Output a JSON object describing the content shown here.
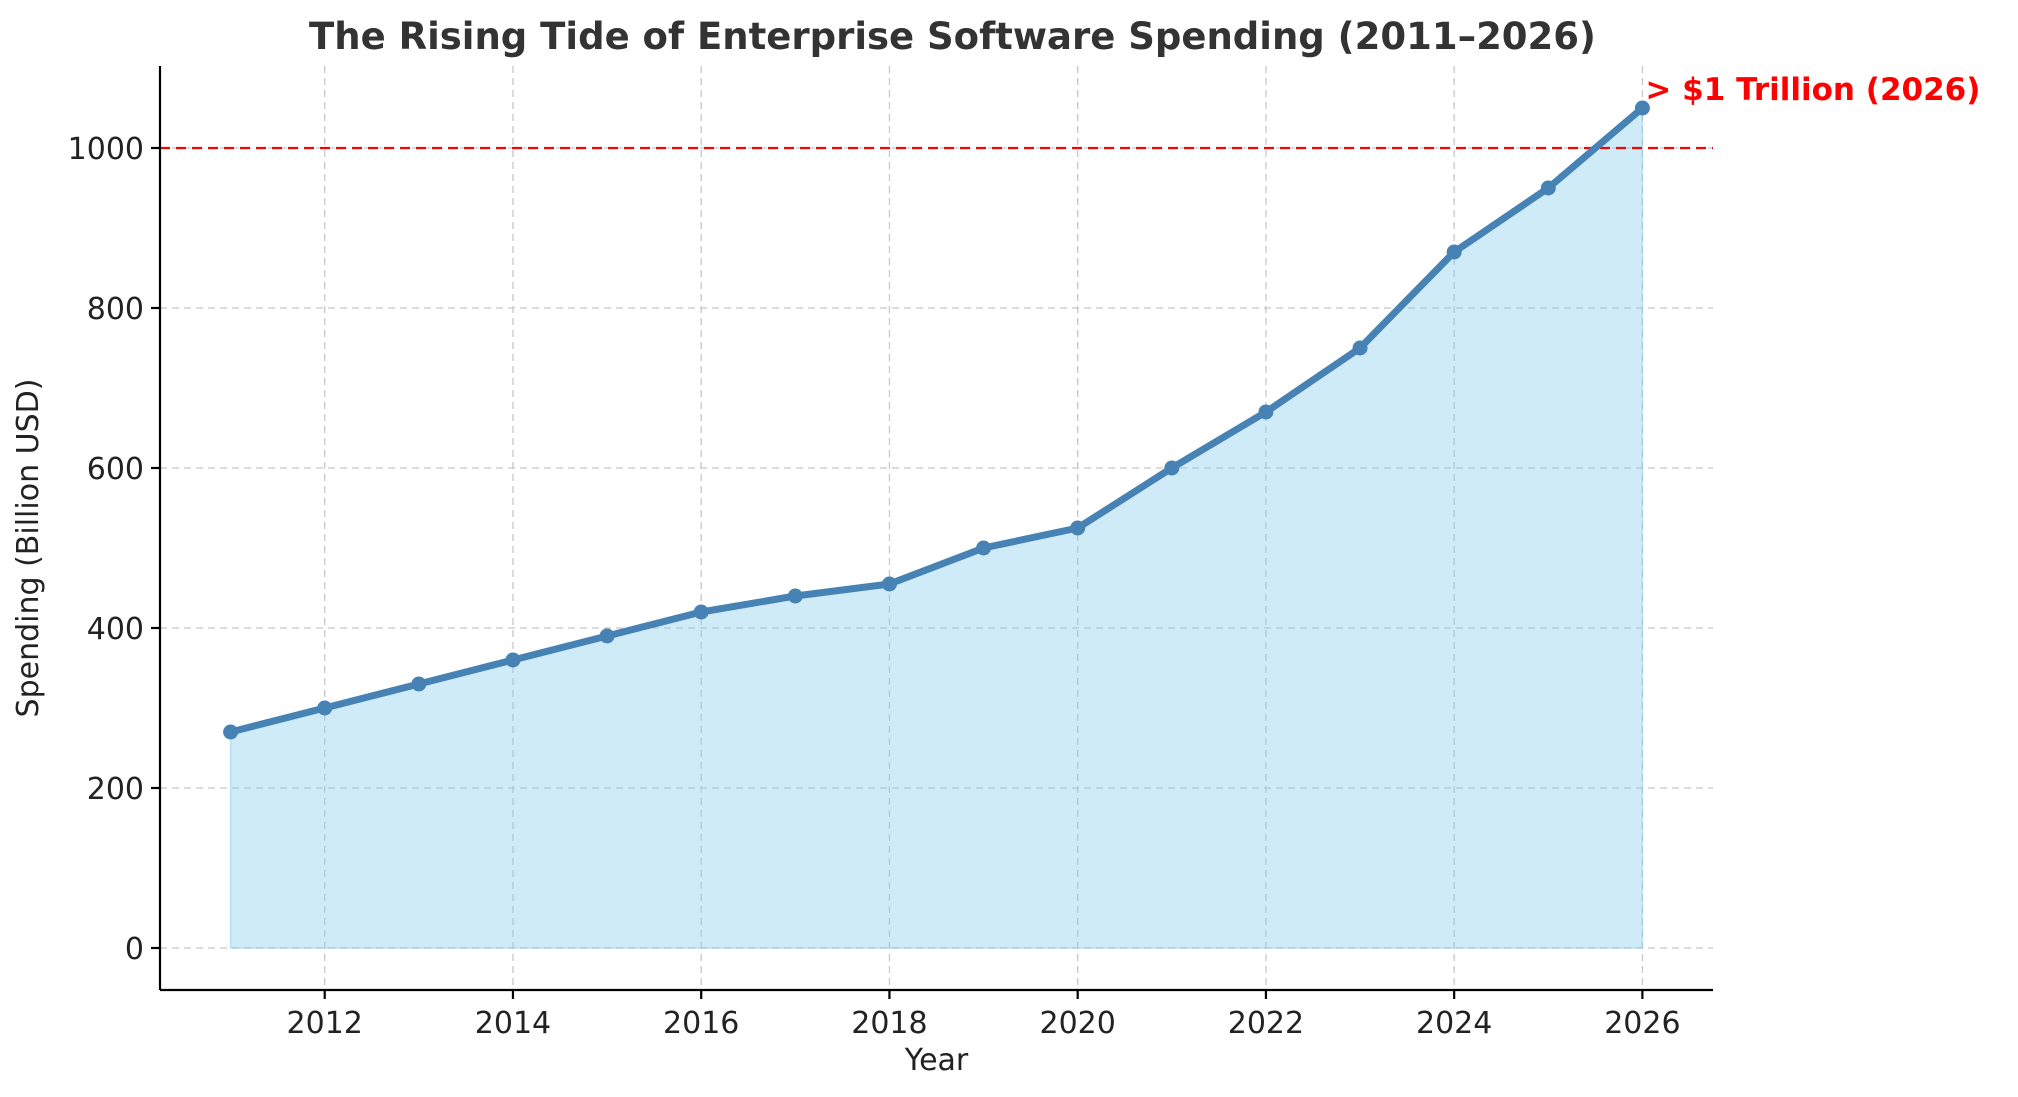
{
  "chart_data": {
    "type": "area",
    "title": "The Rising Tide of Enterprise Software Spending (2011–2026)",
    "xlabel": "Year",
    "ylabel": "Spending (Billion USD)",
    "x": [
      2011,
      2012,
      2013,
      2014,
      2015,
      2016,
      2017,
      2018,
      2019,
      2020,
      2021,
      2022,
      2023,
      2024,
      2025,
      2026
    ],
    "series": [
      {
        "values": [
          270,
          300,
          330,
          360,
          390,
          420,
          440,
          455,
          500,
          525,
          600,
          670,
          750,
          870,
          950,
          1050
        ],
        "line_color": "#4682b4",
        "fill_color": "#87ceeb"
      }
    ],
    "xlim": [
      2010.25,
      2026.75
    ],
    "ylim": [
      -52.5,
      1102.5
    ],
    "xticks": [
      2012,
      2014,
      2016,
      2018,
      2020,
      2022,
      2024,
      2026
    ],
    "yticks": [
      0,
      200,
      400,
      600,
      800,
      1000
    ],
    "grid": true,
    "reference_line": {
      "y": 1000,
      "color": "#ff0000",
      "style": "dashed"
    },
    "annotation": {
      "text": "> $1 Trillion (2026)",
      "x": 2026,
      "y": 1050,
      "color": "#ff0000"
    }
  }
}
